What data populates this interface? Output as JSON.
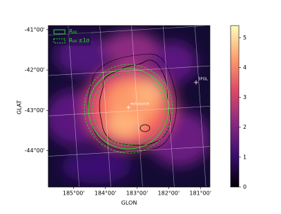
{
  "chart_data": {
    "type": "skymap",
    "xlabel": "GLON",
    "ylabel": "GLAT",
    "xlim": [
      185.8,
      180.7
    ],
    "xticks": [
      {
        "value": 185,
        "label": "185°00'"
      },
      {
        "value": 184,
        "label": "184°00'"
      },
      {
        "value": 183,
        "label": "183°00'"
      },
      {
        "value": 182,
        "label": "182°00'"
      },
      {
        "value": 181,
        "label": "181°00'"
      }
    ],
    "ylim": [
      -44.9,
      -40.9
    ],
    "yticks": [
      {
        "value": -41,
        "label": "-41°00'"
      },
      {
        "value": -42,
        "label": "-42°00'"
      },
      {
        "value": -43,
        "label": "-43°00'"
      },
      {
        "value": -44,
        "label": "-44°00'"
      }
    ],
    "grid": true,
    "legend": {
      "position": "upper left",
      "entries": [
        {
          "label": "R₆₈",
          "color": "#22dd22",
          "style": "solid"
        },
        {
          "label": "R₆₈ ±1σ",
          "color": "#22dd22",
          "style": "dashed"
        }
      ]
    },
    "sources": [
      {
        "label": "3FGL"
      },
      {
        "label": "extsource"
      }
    ],
    "colorbar": {
      "lim": [
        0,
        5.4
      ],
      "ticks": [
        0,
        1,
        2,
        3,
        4,
        5
      ]
    }
  }
}
